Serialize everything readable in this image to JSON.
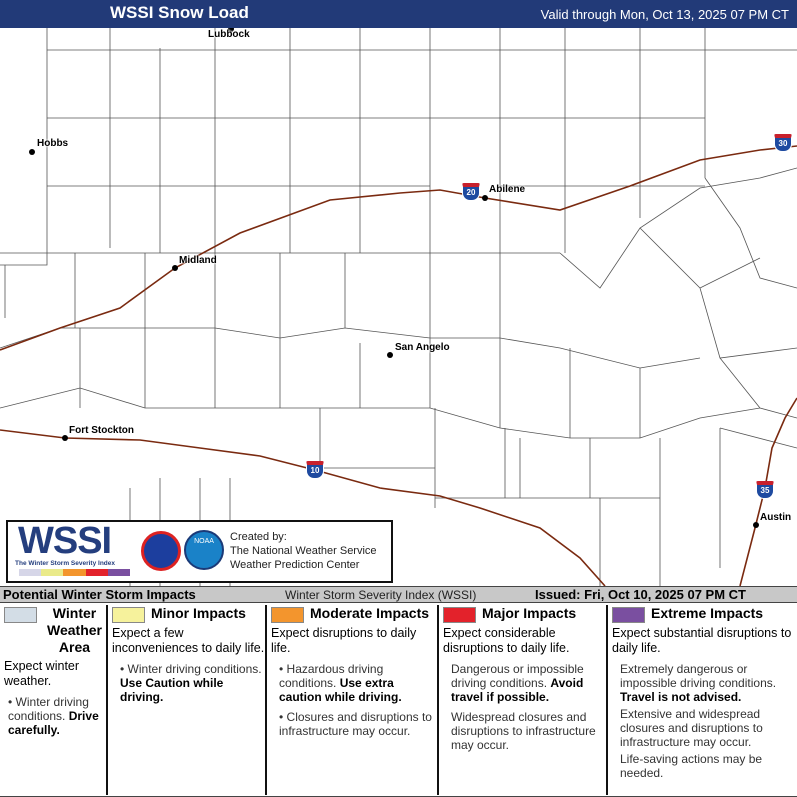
{
  "header": {
    "title": "WSSI Snow Load",
    "valid": "Valid through Mon, Oct 13, 2025 07 PM CT"
  },
  "map": {
    "cities": [
      {
        "name": "Lubbock"
      },
      {
        "name": "Hobbs"
      },
      {
        "name": "Midland"
      },
      {
        "name": "Abilene"
      },
      {
        "name": "San Angelo"
      },
      {
        "name": "Fort Stockton"
      },
      {
        "name": "Austin"
      }
    ],
    "interstates": [
      "20",
      "30",
      "10",
      "35"
    ],
    "highway_color": "#7a2a10"
  },
  "logo": {
    "wssi": "WSSI",
    "subtitle": "The Winter Storm Severity Index",
    "created_by": "Created by:",
    "org1": "The National Weather Service",
    "org2": "Weather Prediction Center",
    "noaa": "NOAA"
  },
  "strip": {
    "left": "Potential Winter Storm Impacts",
    "center": "Winter Storm Severity Index (WSSI)",
    "issued": "Issued: Fri, Oct 10, 2025 07 PM CT"
  },
  "legend": [
    {
      "title": "Winter Weather Area",
      "color": "#d3dde6",
      "expect": "Expect winter weather.",
      "b1": "Winter driving conditions.",
      "b1bold": "Drive carefully.",
      "b2": "",
      "b2bold": "",
      "b3": ""
    },
    {
      "title": "Minor Impacts",
      "color": "#f6f29c",
      "expect": "Expect a few inconveniences to daily life.",
      "b1": "Winter driving conditions.",
      "b1bold": "Use Caution while driving.",
      "b2": "",
      "b3": ""
    },
    {
      "title": "Moderate Impacts",
      "color": "#f3952d",
      "expect": "Expect disruptions to daily life.",
      "b1": "Hazardous driving conditions.",
      "b1bold": "Use extra caution while driving.",
      "b2": "Closures and disruptions to infrastructure may occur.",
      "b3": ""
    },
    {
      "title": "Major Impacts",
      "color": "#e3222b",
      "expect": "Expect considerable disruptions to daily life.",
      "b1": "Dangerous or impossible driving conditions.",
      "b1bold": "Avoid travel if possible.",
      "b2": "Widespread closures and disruptions to infrastructure may occur.",
      "b3": ""
    },
    {
      "title": "Extreme Impacts",
      "color": "#7a4fa0",
      "expect": "Expect substantial disruptions to daily life.",
      "b1": "Extremely dangerous or impossible driving conditions.",
      "b1bold": "Travel is not advised.",
      "b2": "Extensive and widespread closures and disruptions to infrastructure may occur.",
      "b3": "Life-saving actions may be needed."
    }
  ]
}
